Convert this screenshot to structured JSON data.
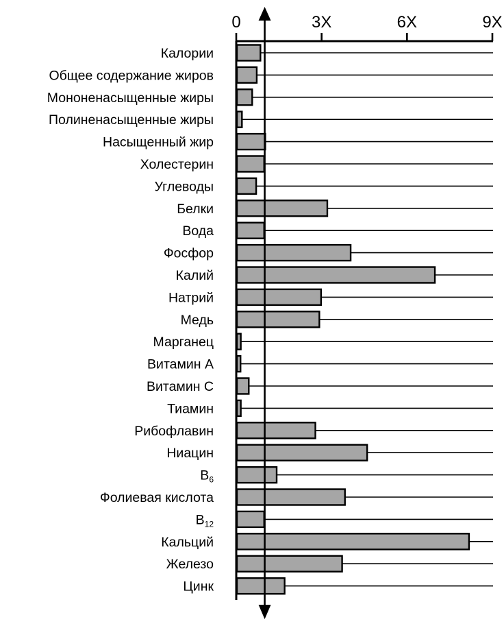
{
  "chart_data": {
    "type": "bar",
    "orientation": "horizontal",
    "title": "",
    "xlabel": "",
    "ylabel": "",
    "xlim": [
      0,
      9
    ],
    "x_ticks": [
      0,
      3,
      6,
      9
    ],
    "x_tick_labels": [
      "0",
      "3X",
      "6X",
      "9X"
    ],
    "reference_line": {
      "value": 1,
      "style": "vertical line with arrowheads at both ends"
    },
    "grid": false,
    "legend": "none",
    "bar_color": "#a6a6a6",
    "categories": [
      {
        "label": "Калории",
        "value": 0.85
      },
      {
        "label": "Общее содержание жиров",
        "value": 0.72
      },
      {
        "label": "Мононенасыщенные жиры",
        "value": 0.56
      },
      {
        "label": "Полиненасыщенные жиры",
        "value": 0.2
      },
      {
        "label": "Насыщенный жир",
        "value": 1.02
      },
      {
        "label": "Холестерин",
        "value": 0.98
      },
      {
        "label": "Углеводы",
        "value": 0.7
      },
      {
        "label": "Белки",
        "value": 3.2
      },
      {
        "label": "Вода",
        "value": 0.98
      },
      {
        "label": "Фосфор",
        "value": 4.02
      },
      {
        "label": "Калий",
        "value": 6.98
      },
      {
        "label": "Натрий",
        "value": 2.98
      },
      {
        "label": "Медь",
        "value": 2.92
      },
      {
        "label": "Марганец",
        "value": 0.16
      },
      {
        "label": "Витамин A",
        "value": 0.15
      },
      {
        "label": "Витамин C",
        "value": 0.44
      },
      {
        "label": "Тиамин",
        "value": 0.16
      },
      {
        "label": "Рибофлавин",
        "value": 2.78
      },
      {
        "label": "Ниацин",
        "value": 4.6
      },
      {
        "label": "B",
        "sub": "6",
        "value": 1.42
      },
      {
        "label": "Фолиевая кислота",
        "value": 3.82
      },
      {
        "label": "B",
        "sub": "12",
        "value": 0.98
      },
      {
        "label": "Кальций",
        "value": 8.18
      },
      {
        "label": "Железо",
        "value": 3.72
      },
      {
        "label": "Цинк",
        "value": 1.7
      }
    ]
  }
}
